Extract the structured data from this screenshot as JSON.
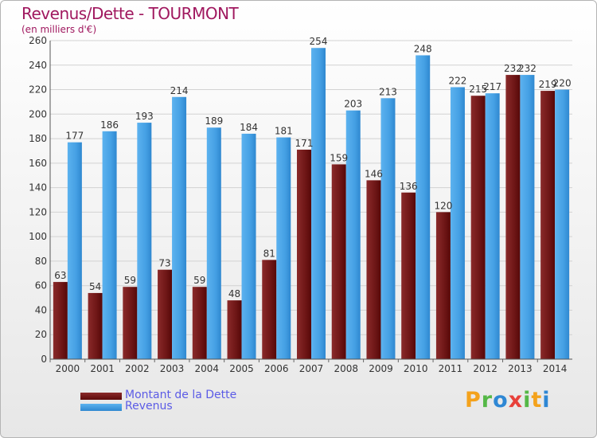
{
  "title": "Revenus/Dette - TOURMONT",
  "subtitle": "(en milliers d'€)",
  "colors": {
    "dette": "#7b1f1f",
    "dette_dark": "#5e0a0a",
    "revenus": "#4aa3e6",
    "revenus_dark": "#2c86cf",
    "grid": "#cfcfcf",
    "title": "#a0185f",
    "legend_text": "#5b5be6"
  },
  "legend": {
    "dette_label": "Montant de la Dette",
    "revenus_label": "Revenus"
  },
  "logo": {
    "letters": [
      "P",
      "r",
      "o",
      "x",
      "i",
      "t",
      "i"
    ],
    "colors": [
      "#f4a21c",
      "#55b847",
      "#2e87d4",
      "#e8403a",
      "#55b847",
      "#f4a21c",
      "#2e87d4"
    ]
  },
  "chart_data": {
    "type": "bar",
    "categories": [
      "2000",
      "2001",
      "2002",
      "2003",
      "2004",
      "2005",
      "2006",
      "2007",
      "2008",
      "2009",
      "2010",
      "2011",
      "2012",
      "2013",
      "2014"
    ],
    "series": [
      {
        "name": "Montant de la Dette",
        "values": [
          63,
          54,
          59,
          73,
          59,
          48,
          81,
          171,
          159,
          146,
          136,
          120,
          215,
          232,
          219
        ]
      },
      {
        "name": "Revenus",
        "values": [
          177,
          186,
          193,
          214,
          189,
          184,
          181,
          254,
          203,
          213,
          248,
          222,
          217,
          232,
          220
        ]
      }
    ],
    "ylim": [
      0,
      260
    ],
    "yticks": [
      0,
      20,
      40,
      60,
      80,
      100,
      120,
      140,
      160,
      180,
      200,
      220,
      240,
      260
    ],
    "grid": true,
    "legend_position": "bottom-left"
  }
}
